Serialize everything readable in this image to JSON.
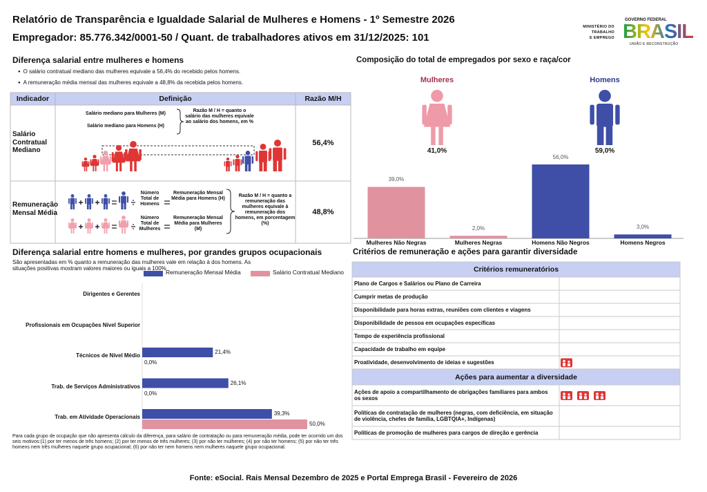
{
  "header": {
    "title": "Relatório de Transparência e Igualdade Salarial de Mulheres e Homens - 1º Semestre 2026",
    "subtitle": "Empregador: 85.776.342/0001-50 / Quant. de trabalhadores ativos em 31/12/2025: 101",
    "ministry": [
      "MINISTÉRIO DO",
      "TRABALHO",
      "E EMPREGO"
    ],
    "gov_label": "GOVERNO FEDERAL",
    "gov_name": "BRASIL",
    "gov_motto": "UNIÃO E RECONSTRUÇÃO"
  },
  "pay_gap": {
    "title": "Diferença salarial entre mulheres e homens",
    "bullets": [
      "O salário contratual mediano das mulheres equivale a 56,4% do recebido pelos homens.",
      "A remuneração média mensal das mulheres equivale a 48,8% da recebida pelos homens."
    ],
    "table": {
      "headers": [
        "Indicador",
        "Definição",
        "Razão M/H"
      ],
      "rows": [
        {
          "indicator": "Salário Contratual Mediano",
          "definitions": [
            "Salário mediano para Mulheres (M)",
            "Salário mediano para Homens (H)"
          ],
          "ratio_note": "Razão M / H = quanto o salário das mulheres equivale ao salário dos homens, em %",
          "ratio": "56,4%"
        },
        {
          "indicator": "Remuneração Mensal Média",
          "definitions": [
            "Número Total de Homens",
            "Remuneração Mensal Média para Homens (H)",
            "Número Total de Mulheres",
            "Remuneração Mensal Média para Mulheres (M)"
          ],
          "ratio_note": "Razão M / H = quanto a remuneração das mulheres equivale à remuneração dos homens, em porcentagem (%)",
          "ratio": "48,8%"
        }
      ]
    }
  },
  "composition": {
    "female_label": "Mulheres",
    "female_share": "41,0%",
    "male_label": "Homens",
    "male_share": "59,0%"
  },
  "chart_data": [
    {
      "type": "bar",
      "title": "Composição do total de empregados por sexo e raça/cor",
      "categories": [
        "Mulheres Não Negras",
        "Mulheres Negras",
        "Homens Não Negros",
        "Homens Negros"
      ],
      "values": [
        39.0,
        2.0,
        56.0,
        3.0
      ],
      "value_labels": [
        "39,0%",
        "2,0%",
        "56,0%",
        "3,0%"
      ],
      "colors": [
        "#e0939f",
        "#e0939f",
        "#3f4ea6",
        "#3f4ea6"
      ]
    },
    {
      "type": "hbar",
      "title": "Diferença salarial entre homens e mulheres, por grandes grupos ocupacionais",
      "subtitle": "São apresentadas em % quanto a remuneração das mulheres vale em relação à dos homens. As situações positivas mostram valores maiores ou iguais a 100%",
      "categories": [
        "Dirigentes e Gerentes",
        "Profissionais em Ocupações Nível Superior",
        "Técnicos de Nível Médio",
        "Trab. de Serviços Administrativos",
        "Trab. em Atividade Operacionais"
      ],
      "series": [
        {
          "name": "Remuneração Mensal Média",
          "color": "#3f4ea6",
          "values": [
            null,
            null,
            21.4,
            26.1,
            39.3
          ],
          "value_labels": [
            null,
            null,
            "21,4%",
            "26,1%",
            "39,3%"
          ]
        },
        {
          "name": "Salário Contratual Mediano",
          "color": "#e0939f",
          "values": [
            null,
            null,
            0.0,
            0.0,
            50.0
          ],
          "value_labels": [
            null,
            null,
            "0,0%",
            "0,0%",
            "50,0%"
          ]
        }
      ],
      "note": "Para cada grupo de ocupação que não apresenta cálculo da diferença, para salário de contratação ou para remuneração média, pode ter ocorrido um dos seis motivos:(1) por ter menos de três homens; (2) por ter menos de três mulheres; (3) por não ter mulheres; (4) por não ter homens; (5) por não ter três homens nem três mulheres naquele grupo ocupacional; (6) por não ter nem homens nem mulheres naquele grupo ocupacional."
    }
  ],
  "criteria": {
    "title": "Critérios de remuneração e ações para garantir diversidade",
    "sections": [
      {
        "heading": "Critérios remuneratórios",
        "rows": [
          {
            "text": "Plano de Cargos e Salários ou Plano de Carreira"
          },
          {
            "text": "Cumprir metas de produção"
          },
          {
            "text": "Disponibilidade para horas extras, reuniões com clientes e viagens"
          },
          {
            "text": "Disponibilidade de pessoa em ocupações específicas"
          },
          {
            "text": "Tempo de experiência profissional"
          },
          {
            "text": "Capacidade de trabalho em equipe"
          },
          {
            "text": "Proatividade, desenvolvimento de ideias e sugestões",
            "icons": 1
          }
        ]
      },
      {
        "heading": "Ações para aumentar a diversidade",
        "rows": [
          {
            "text": "Ações de apoio a compartilhamento de obrigações familiares para ambos os sexos",
            "icons": 3
          },
          {
            "text": "Políticas de contratação de mulheres (negras, com deficiência, em situação de violência, chefes de família, LGBTQIA+, Indígenas)"
          },
          {
            "text": "Políticas de promoção de mulheres para cargos de direção e gerência"
          }
        ]
      }
    ]
  },
  "source": "Fonte: eSocial. Rais Mensal Dezembro de 2025 e Portal Emprega Brasil - Fevereiro de 2026"
}
